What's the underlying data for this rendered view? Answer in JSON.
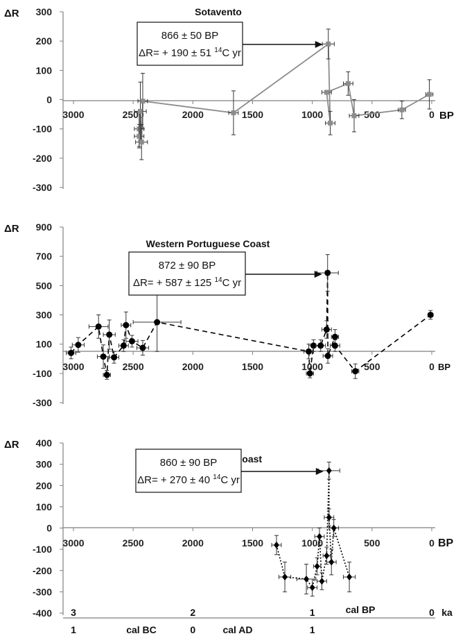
{
  "chart_data": [
    {
      "type": "line",
      "title": "Sotavento",
      "ylabel": "ΔR",
      "xunit": "BP",
      "xlim": [
        3200,
        0
      ],
      "ylim": [
        -300,
        300
      ],
      "xticks": [
        3000,
        2500,
        2000,
        1500,
        1000,
        500,
        0
      ],
      "yticks": [
        300,
        200,
        100,
        0,
        -100,
        -200,
        -300
      ],
      "marker": "square",
      "line_style": "solid",
      "color": "#8c8c8c",
      "points": [
        {
          "x": 2450,
          "y": -100,
          "xerr": 40,
          "yerr": 60
        },
        {
          "x": 2450,
          "y": -125,
          "xerr": 40,
          "yerr": 40
        },
        {
          "x": 2440,
          "y": -40,
          "xerr": 50,
          "yerr": 100
        },
        {
          "x": 2430,
          "y": -145,
          "xerr": 50,
          "yerr": 60
        },
        {
          "x": 2420,
          "y": -5,
          "xerr": 40,
          "yerr": 95
        },
        {
          "x": 1660,
          "y": -45,
          "xerr": 40,
          "yerr": 75
        },
        {
          "x": 866,
          "y": 190,
          "xerr": 50,
          "yerr": 51
        },
        {
          "x": 850,
          "y": -80,
          "xerr": 40,
          "yerr": 40
        },
        {
          "x": 880,
          "y": 25,
          "xerr": 40,
          "yerr": 0
        },
        {
          "x": 700,
          "y": 55,
          "xerr": 40,
          "yerr": 40
        },
        {
          "x": 650,
          "y": -55,
          "xerr": 40,
          "yerr": 55
        },
        {
          "x": 250,
          "y": -35,
          "xerr": 30,
          "yerr": 30
        },
        {
          "x": 20,
          "y": 18,
          "xerr": 30,
          "yerr": 50
        }
      ],
      "annotation": {
        "line1": "866 ± 50 BP",
        "line2a": "ΔR= + 190 ± 51 ",
        "line2sup": "14",
        "line2b": "C yr",
        "target_x": 866,
        "target_y": 190
      }
    },
    {
      "type": "line",
      "title": "Western Portuguese Coast",
      "ylabel": "ΔR",
      "xunit": "BP",
      "xlim": [
        3200,
        0
      ],
      "ylim": [
        -300,
        900
      ],
      "xticks": [
        3000,
        2500,
        2000,
        1500,
        1000,
        500,
        0
      ],
      "yticks": [
        900,
        700,
        500,
        300,
        100,
        -100,
        -300
      ],
      "marker": "circle",
      "line_style": "dashed",
      "color": "#000000",
      "points": [
        {
          "x": 3020,
          "y": 40,
          "xerr": 40,
          "yerr": 40
        },
        {
          "x": 2960,
          "y": 95,
          "xerr": 50,
          "yerr": 50
        },
        {
          "x": 2790,
          "y": 220,
          "xerr": 80,
          "yerr": 80
        },
        {
          "x": 2750,
          "y": 15,
          "xerr": 50,
          "yerr": 80
        },
        {
          "x": 2720,
          "y": -110,
          "xerr": 30,
          "yerr": 30
        },
        {
          "x": 2700,
          "y": 165,
          "xerr": 50,
          "yerr": 100
        },
        {
          "x": 2660,
          "y": 10,
          "xerr": 40,
          "yerr": 40
        },
        {
          "x": 2580,
          "y": 90,
          "xerr": 40,
          "yerr": 40
        },
        {
          "x": 2560,
          "y": 230,
          "xerr": 40,
          "yerr": 90
        },
        {
          "x": 2510,
          "y": 120,
          "xerr": 50,
          "yerr": 40
        },
        {
          "x": 2420,
          "y": 75,
          "xerr": 50,
          "yerr": 50
        },
        {
          "x": 2300,
          "y": 250,
          "xerr": 200,
          "yerr": 200
        },
        {
          "x": 1030,
          "y": 50,
          "xerr": 40,
          "yerr": 50
        },
        {
          "x": 1020,
          "y": -100,
          "xerr": 30,
          "yerr": 30
        },
        {
          "x": 990,
          "y": 90,
          "xerr": 40,
          "yerr": 40
        },
        {
          "x": 930,
          "y": 90,
          "xerr": 40,
          "yerr": 40
        },
        {
          "x": 880,
          "y": 200,
          "xerr": 40,
          "yerr": 60
        },
        {
          "x": 872,
          "y": 587,
          "xerr": 90,
          "yerr": 125
        },
        {
          "x": 870,
          "y": 20,
          "xerr": 40,
          "yerr": 50
        },
        {
          "x": 810,
          "y": 150,
          "xerr": 30,
          "yerr": 50
        },
        {
          "x": 810,
          "y": 90,
          "xerr": 40,
          "yerr": 40
        },
        {
          "x": 640,
          "y": -85,
          "xerr": 30,
          "yerr": 50
        },
        {
          "x": 10,
          "y": 300,
          "xerr": 20,
          "yerr": 30
        }
      ],
      "annotation": {
        "line1": "872 ± 90 BP",
        "line2a": "ΔR= + 587 ± 125 ",
        "line2sup": "14",
        "line2b": "C yr",
        "target_x": 872,
        "target_y": 587
      }
    },
    {
      "type": "line",
      "title": "Western Galician Coast",
      "ylabel": "ΔR",
      "xunit": "BP",
      "xlim": [
        3200,
        0
      ],
      "ylim": [
        -400,
        400
      ],
      "xticks": [
        3000,
        2500,
        2000,
        1500,
        1000,
        500,
        0
      ],
      "yticks": [
        400,
        300,
        200,
        100,
        0,
        -100,
        -200,
        -300,
        -400
      ],
      "marker": "diamond",
      "line_style": "dotted",
      "color": "#000000",
      "points": [
        {
          "x": 1300,
          "y": -80,
          "xerr": 40,
          "yerr": 45
        },
        {
          "x": 1230,
          "y": -230,
          "xerr": 50,
          "yerr": 70
        },
        {
          "x": 1050,
          "y": -240,
          "xerr": 80,
          "yerr": 70
        },
        {
          "x": 1000,
          "y": -280,
          "xerr": 40,
          "yerr": 40
        },
        {
          "x": 960,
          "y": -180,
          "xerr": 30,
          "yerr": 40
        },
        {
          "x": 940,
          "y": -40,
          "xerr": 40,
          "yerr": 40
        },
        {
          "x": 920,
          "y": -250,
          "xerr": 40,
          "yerr": 40
        },
        {
          "x": 880,
          "y": -130,
          "xerr": 30,
          "yerr": 40
        },
        {
          "x": 860,
          "y": 270,
          "xerr": 90,
          "yerr": 40
        },
        {
          "x": 860,
          "y": 50,
          "xerr": 40,
          "yerr": 40
        },
        {
          "x": 840,
          "y": -160,
          "xerr": 40,
          "yerr": 60
        },
        {
          "x": 820,
          "y": 0,
          "xerr": 40,
          "yerr": 40
        },
        {
          "x": 690,
          "y": -230,
          "xerr": 50,
          "yerr": 70
        }
      ],
      "annotation": {
        "line1": "860 ± 90 BP",
        "line2a": "ΔR= + 270 ± 40 ",
        "line2sup": "14",
        "line2b": "C yr",
        "target_x": 860,
        "target_y": 270
      }
    }
  ],
  "bottom_scale": {
    "ka_ticks": [
      {
        "x": 3000,
        "label": "3"
      },
      {
        "x": 2000,
        "label": "2"
      },
      {
        "x": 1000,
        "label": "1"
      },
      {
        "x": 0,
        "label": "0"
      }
    ],
    "ka_unit": "ka",
    "cal_bp_label": "cal BP",
    "cal_ticks": [
      {
        "x": 3000,
        "label": "1"
      },
      {
        "x": 2000,
        "label": "0"
      },
      {
        "x": 1000,
        "label": "1"
      }
    ],
    "cal_bc_label": "cal BC",
    "cal_ad_label": "cal AD"
  }
}
